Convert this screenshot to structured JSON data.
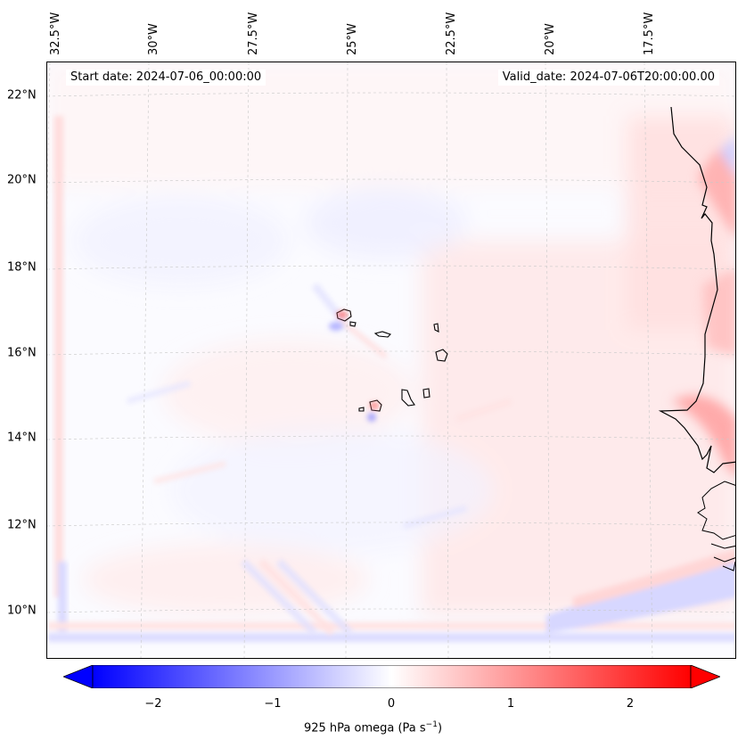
{
  "map": {
    "start_date": "Start date: 2024-07-06_00:00:00",
    "valid_date": "Valid_date: 2024-07-06T20:00:00.00",
    "lat_labels": [
      "22°N",
      "20°N",
      "18°N",
      "16°N",
      "14°N",
      "12°N",
      "10°N"
    ],
    "lon_labels": [
      "32.5°W",
      "30°W",
      "27.5°W",
      "25°W",
      "22.5°W",
      "20°W",
      "17.5°W"
    ],
    "features": [
      "coastline-africa",
      "cape-verde-islands",
      "graticule"
    ]
  },
  "colorbar": {
    "label": "925 hPa omega (Pa s",
    "label_sup": "−1",
    "label_close": ")",
    "ticks": [
      "−2",
      "−1",
      "0",
      "1",
      "2"
    ],
    "range": [
      -2.6,
      2.6
    ],
    "extend": "both",
    "colormap": "bwr",
    "min_color": "#0000ff",
    "mid_color": "#ffffff",
    "max_color": "#ff0000"
  }
}
